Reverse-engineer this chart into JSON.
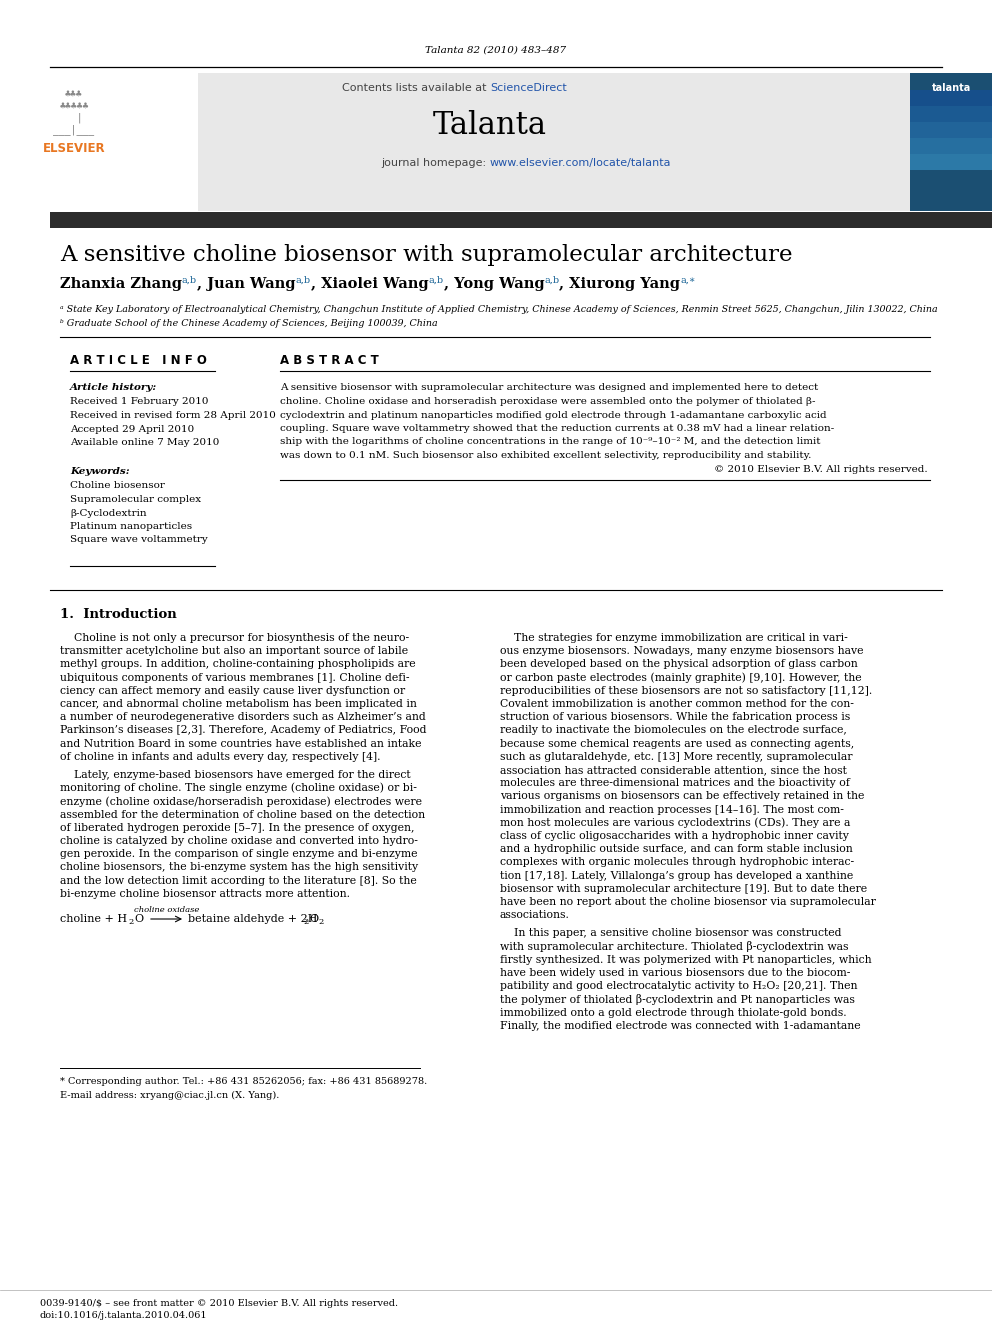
{
  "journal_ref": "Talanta 82 (2010) 483–487",
  "contents_note": "Contents lists available at ",
  "sciencedirect": "ScienceDirect",
  "journal_name": "Talanta",
  "journal_url": "journal homepage: www.elsevier.com/locate/talanta",
  "title": "A sensitive choline biosensor with supramolecular architecture",
  "affil_a": "ᵃ State Key Laboratory of Electroanalytical Chemistry, Changchun Institute of Applied Chemistry, Chinese Academy of Sciences, Renmin Street 5625, Changchun, Jilin 130022, China",
  "affil_b": "ᵇ Graduate School of the Chinese Academy of Sciences, Beijing 100039, China",
  "article_info_header": "A R T I C L E   I N F O",
  "abstract_header": "A B S T R A C T",
  "article_history_label": "Article history:",
  "received": "Received 1 February 2010",
  "received_revised": "Received in revised form 28 April 2010",
  "accepted": "Accepted 29 April 2010",
  "available": "Available online 7 May 2010",
  "keywords_label": "Keywords:",
  "keywords": [
    "Choline biosensor",
    "Supramolecular complex",
    "β-Cyclodextrin",
    "Platinum nanoparticles",
    "Square wave voltammetry"
  ],
  "abstract_lines": [
    "A sensitive biosensor with supramolecular architecture was designed and implemented here to detect",
    "choline. Choline oxidase and horseradish peroxidase were assembled onto the polymer of thiolated β-",
    "cyclodextrin and platinum nanoparticles modified gold electrode through 1-adamantane carboxylic acid",
    "coupling. Square wave voltammetry showed that the reduction currents at 0.38 mV had a linear relation-",
    "ship with the logarithms of choline concentrations in the range of 10⁻⁹–10⁻² M, and the detection limit",
    "was down to 0.1 nM. Such biosensor also exhibited excellent selectivity, reproducibility and stability.",
    "© 2010 Elsevier B.V. All rights reserved."
  ],
  "section1_header": "1.  Introduction",
  "intro_p1": [
    "    Choline is not only a precursor for biosynthesis of the neuro-",
    "transmitter acetylcholine but also an important source of labile",
    "methyl groups. In addition, choline-containing phospholipids are",
    "ubiquitous components of various membranes [1]. Choline defi-",
    "ciency can affect memory and easily cause liver dysfunction or",
    "cancer, and abnormal choline metabolism has been implicated in",
    "a number of neurodegenerative disorders such as Alzheimer’s and",
    "Parkinson’s diseases [2,3]. Therefore, Academy of Pediatrics, Food",
    "and Nutrition Board in some countries have established an intake",
    "of choline in infants and adults every day, respectively [4]."
  ],
  "intro_p2": [
    "    Lately, enzyme-based biosensors have emerged for the direct",
    "monitoring of choline. The single enzyme (choline oxidase) or bi-",
    "enzyme (choline oxidase/horseradish peroxidase) electrodes were",
    "assembled for the determination of choline based on the detection",
    "of liberated hydrogen peroxide [5–7]. In the presence of oxygen,",
    "choline is catalyzed by choline oxidase and converted into hydro-",
    "gen peroxide. In the comparison of single enzyme and bi-enzyme",
    "choline biosensors, the bi-enzyme system has the high sensitivity",
    "and the low detection limit according to the literature [8]. So the",
    "bi-enzyme choline biosensor attracts more attention."
  ],
  "intro_r1": [
    "    The strategies for enzyme immobilization are critical in vari-",
    "ous enzyme biosensors. Nowadays, many enzyme biosensors have",
    "been developed based on the physical adsorption of glass carbon",
    "or carbon paste electrodes (mainly graphite) [9,10]. However, the",
    "reproducibilities of these biosensors are not so satisfactory [11,12].",
    "Covalent immobilization is another common method for the con-",
    "struction of various biosensors. While the fabrication process is",
    "readily to inactivate the biomolecules on the electrode surface,",
    "because some chemical reagents are used as connecting agents,",
    "such as glutaraldehyde, etc. [13] More recently, supramolecular",
    "association has attracted considerable attention, since the host",
    "molecules are three-dimensional matrices and the bioactivity of",
    "various organisms on biosensors can be effectively retained in the"
  ],
  "intro_r2": [
    "immobilization and reaction processes [14–16]. The most com-",
    "mon host molecules are various cyclodextrins (CDs). They are a",
    "class of cyclic oligosaccharides with a hydrophobic inner cavity",
    "and a hydrophilic outside surface, and can form stable inclusion",
    "complexes with organic molecules through hydrophobic interac-",
    "tion [17,18]. Lately, Villalonga’s group has developed a xanthine",
    "biosensor with supramolecular architecture [19]. But to date there",
    "have been no report about the choline biosensor via supramolecular",
    "associations."
  ],
  "intro_r3": [
    "    In this paper, a sensitive choline biosensor was constructed",
    "with supramolecular architecture. Thiolated β-cyclodextrin was",
    "firstly synthesized. It was polymerized with Pt nanoparticles, which",
    "have been widely used in various biosensors due to the biocom-",
    "patibility and good electrocatalytic activity to H₂O₂ [20,21]. Then",
    "the polymer of thiolated β-cyclodextrin and Pt nanoparticles was",
    "immobilized onto a gold electrode through thiolate-gold bonds.",
    "Finally, the modified electrode was connected with 1-adamantane"
  ],
  "footnote_corresponding": "* Corresponding author. Tel.: +86 431 85262056; fax: +86 431 85689278.",
  "footnote_email": "E-mail address: xryang@ciac.jl.cn (X. Yang).",
  "footer_issn": "0039-9140/$ – see front matter © 2010 Elsevier B.V. All rights reserved.",
  "footer_doi": "doi:10.1016/j.talanta.2010.04.061",
  "header_bg": "#e8e8e8",
  "blue_color": "#1a6496",
  "orange_color": "#e87722",
  "dark_header_bg": "#2c2c2c",
  "link_color": "#2255aa"
}
